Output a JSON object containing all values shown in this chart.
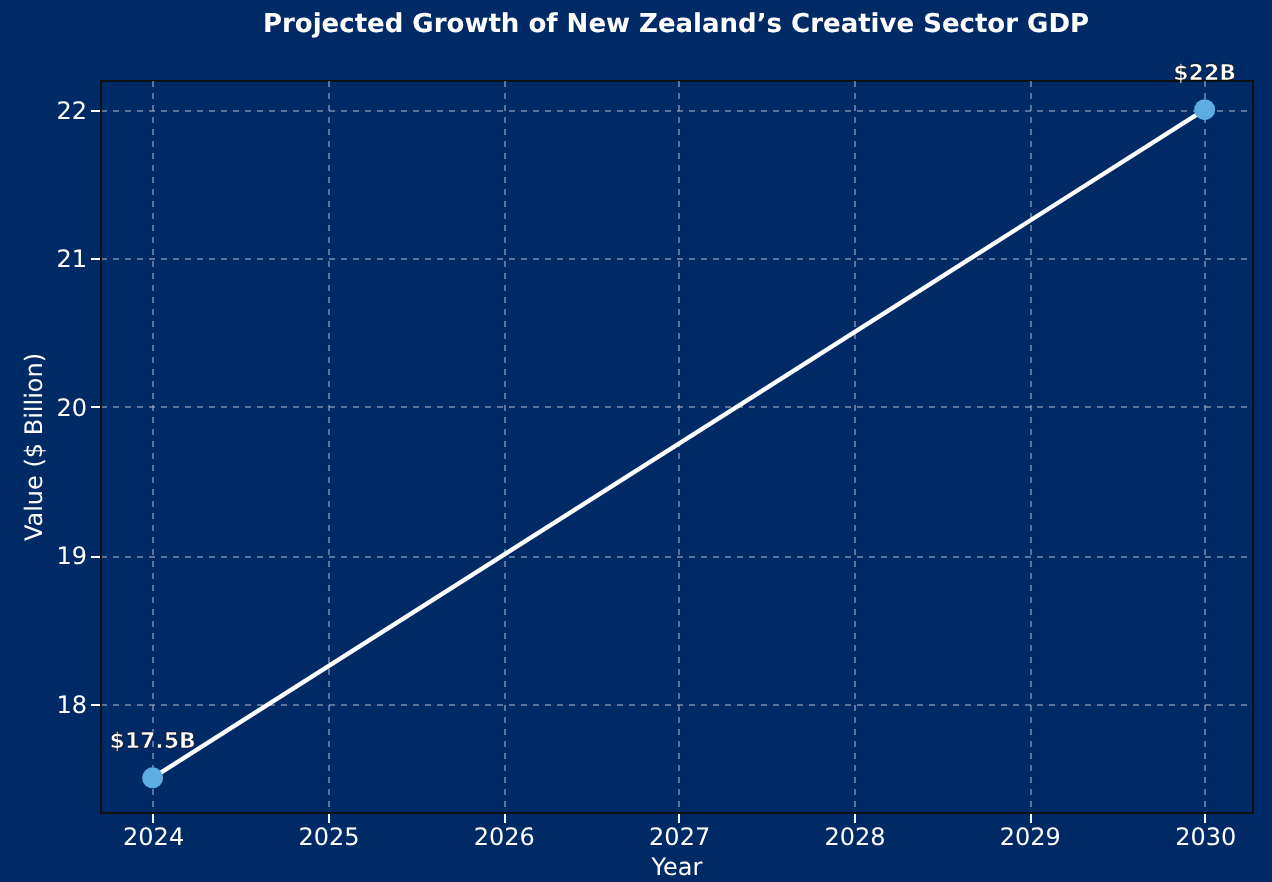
{
  "chart_data": {
    "type": "line",
    "title": "Projected Growth of New Zealand’s Creative Sector GDP",
    "xlabel": "Year",
    "ylabel": "Value ($ Billion)",
    "x": [
      2024,
      2030
    ],
    "series": [
      {
        "color": "#ffffff",
        "values": [
          17.5,
          22
        ]
      },
      {
        "type": "scatter",
        "color": "#5dade2",
        "marker": "circle",
        "values": [
          17.5,
          22
        ]
      }
    ],
    "line_style": "solid",
    "xlim": [
      2023.7,
      2030.27
    ],
    "xticks": [
      2024,
      2025,
      2026,
      2027,
      2028,
      2029,
      2030
    ],
    "ylim": [
      17.27,
      22.2
    ],
    "yticks": [
      18,
      19,
      20,
      21,
      22
    ],
    "grid": true,
    "annotations": [
      {
        "text": "$17.5B",
        "x": 2024,
        "y": 17.5
      },
      {
        "text": "$22B",
        "x": 2030,
        "y": 22
      }
    ]
  }
}
